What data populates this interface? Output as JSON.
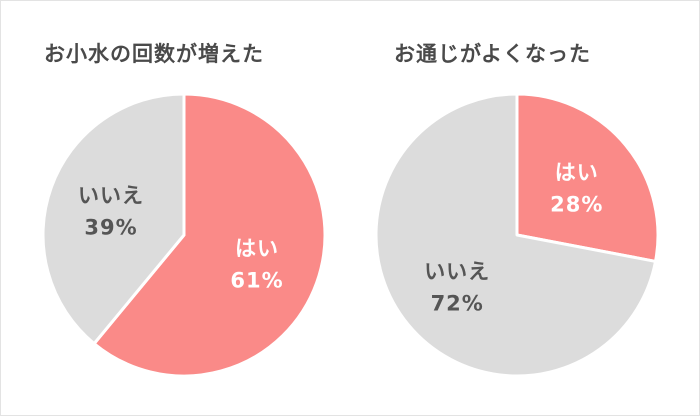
{
  "chart_data": [
    {
      "type": "pie",
      "title": "お小水の回数が増えた",
      "slices": [
        {
          "label": "はい",
          "value": 61,
          "display": "61%",
          "color": "#fa8a88",
          "text_color": "#ffffff"
        },
        {
          "label": "いいえ",
          "value": 39,
          "display": "39%",
          "color": "#dcdcdc",
          "text_color": "#555555"
        }
      ]
    },
    {
      "type": "pie",
      "title": "お通じがよくなった",
      "slices": [
        {
          "label": "はい",
          "value": 28,
          "display": "28%",
          "color": "#fa8a88",
          "text_color": "#ffffff"
        },
        {
          "label": "いいえ",
          "value": 72,
          "display": "72%",
          "color": "#dcdcdc",
          "text_color": "#555555"
        }
      ]
    }
  ]
}
